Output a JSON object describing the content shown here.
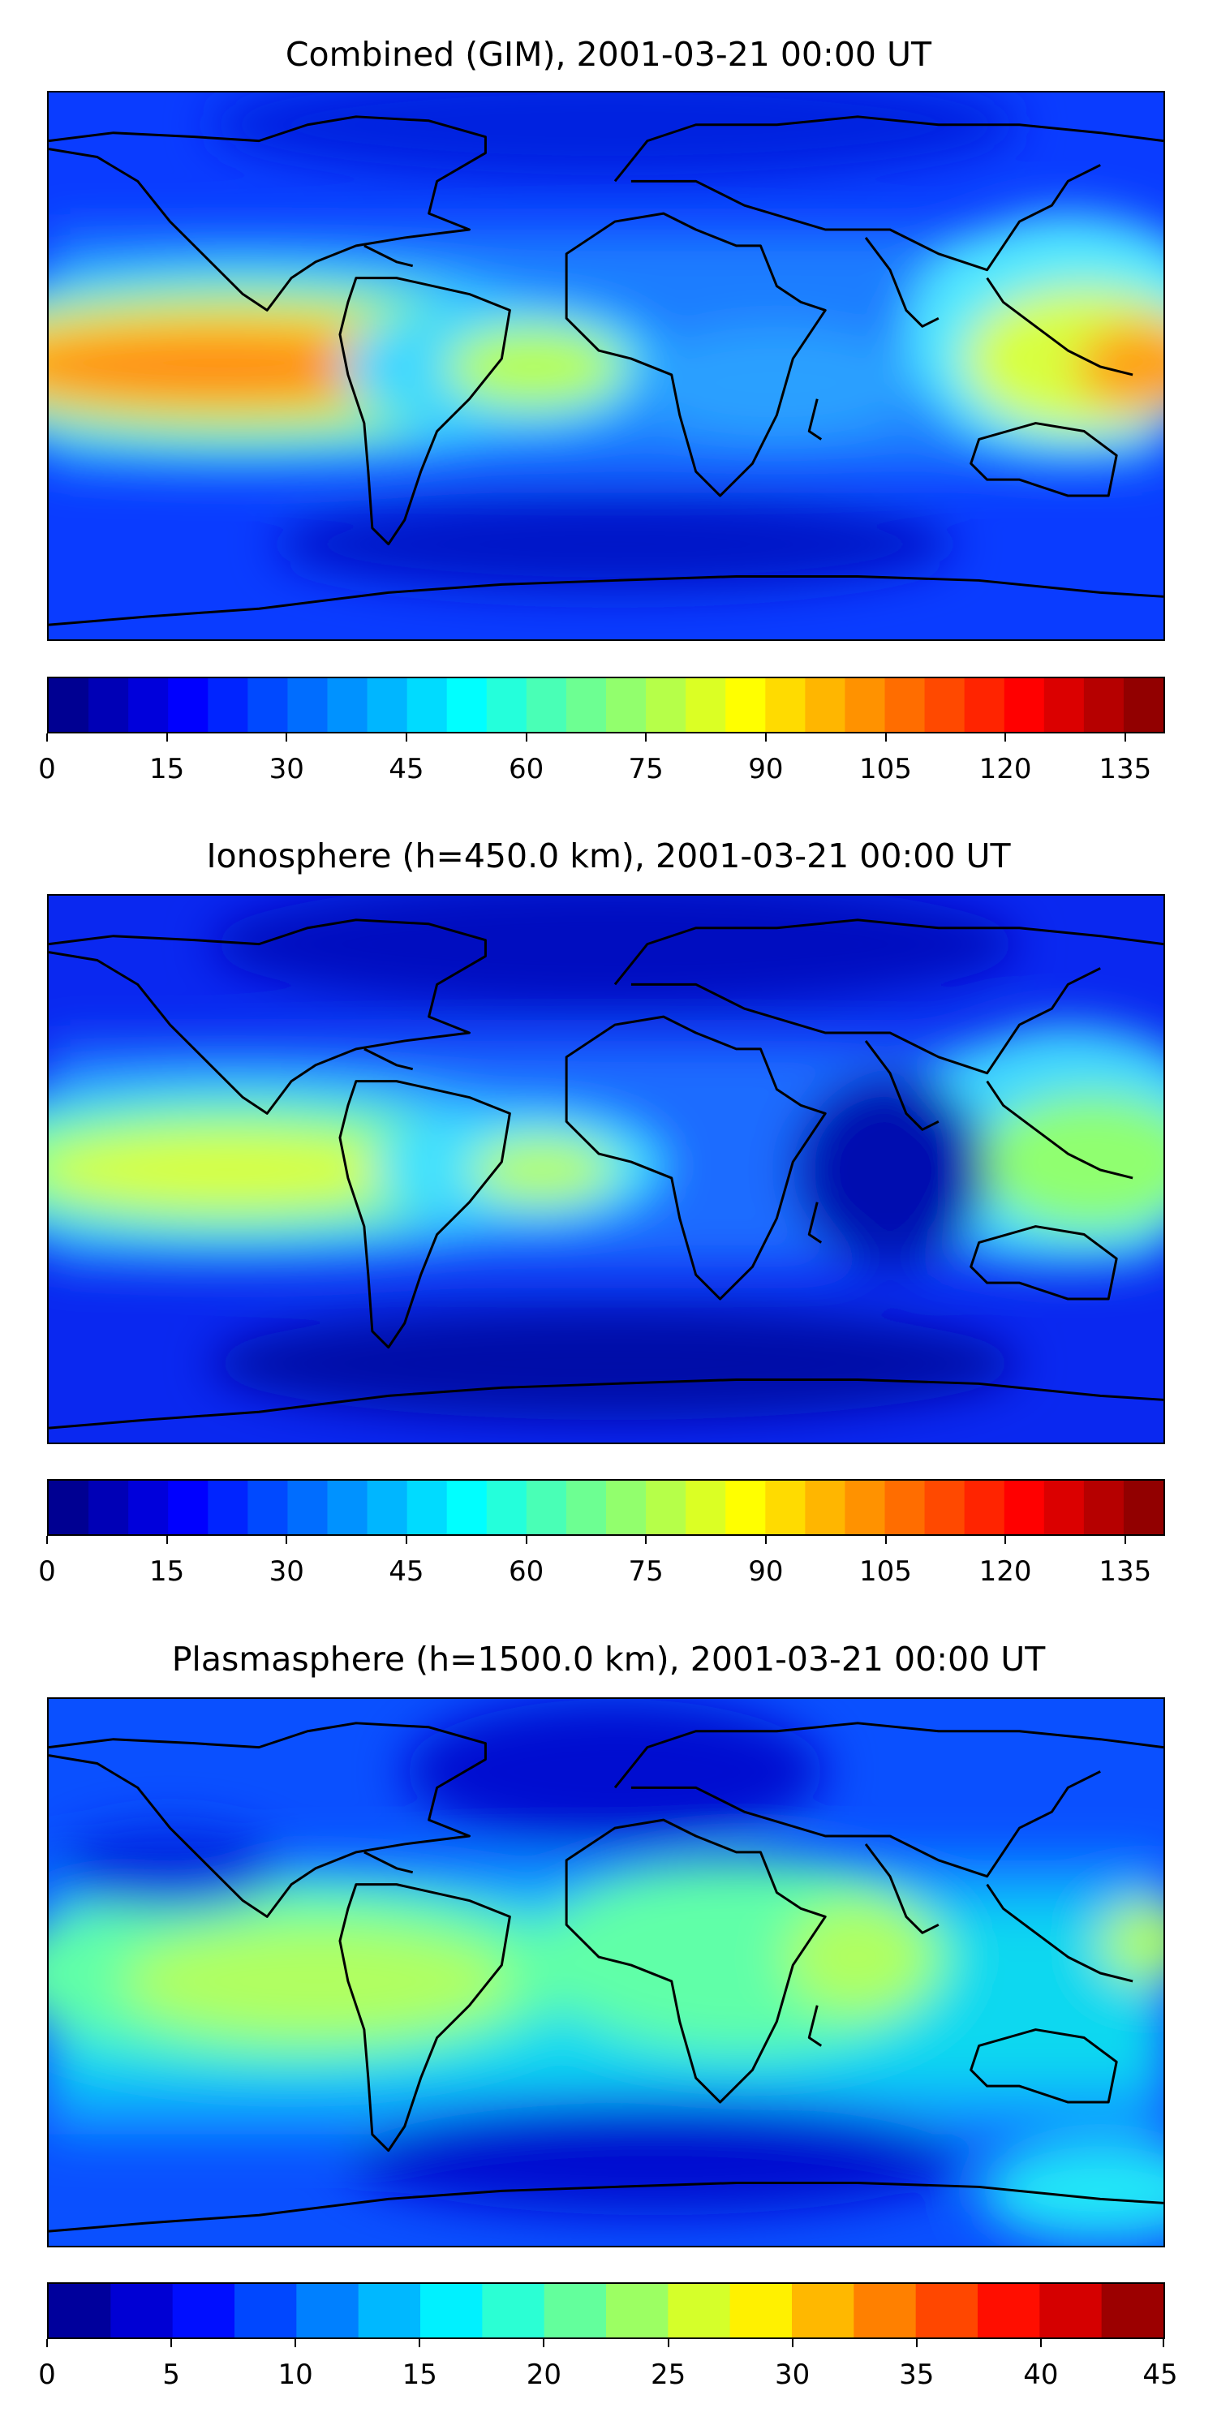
{
  "panels": [
    {
      "title": "Combined (GIM), 2001-03-21 00:00 UT",
      "colorbar": {
        "colormap": "jet",
        "vmin": 0,
        "vmax": 140,
        "step": 5,
        "ticks": [
          "0",
          "15",
          "30",
          "45",
          "60",
          "75",
          "90",
          "105",
          "120",
          "135"
        ],
        "tick_values": [
          0,
          15,
          30,
          45,
          60,
          75,
          90,
          105,
          120,
          135
        ]
      }
    },
    {
      "title": "Ionosphere  (h=450.0 km), 2001-03-21 00:00 UT",
      "colorbar": {
        "colormap": "jet",
        "vmin": 0,
        "vmax": 140,
        "step": 5,
        "ticks": [
          "0",
          "15",
          "30",
          "45",
          "60",
          "75",
          "90",
          "105",
          "120",
          "135"
        ],
        "tick_values": [
          0,
          15,
          30,
          45,
          60,
          75,
          90,
          105,
          120,
          135
        ]
      }
    },
    {
      "title": "Plasmasphere (h=1500.0 km), 2001-03-21 00:00 UT",
      "colorbar": {
        "colormap": "jet",
        "vmin": 0,
        "vmax": 45,
        "step": 2.5,
        "ticks": [
          "0",
          "5",
          "10",
          "15",
          "20",
          "25",
          "30",
          "35",
          "40",
          "45"
        ],
        "tick_values": [
          0,
          5,
          10,
          15,
          20,
          25,
          30,
          35,
          40,
          45
        ]
      }
    }
  ]
}
